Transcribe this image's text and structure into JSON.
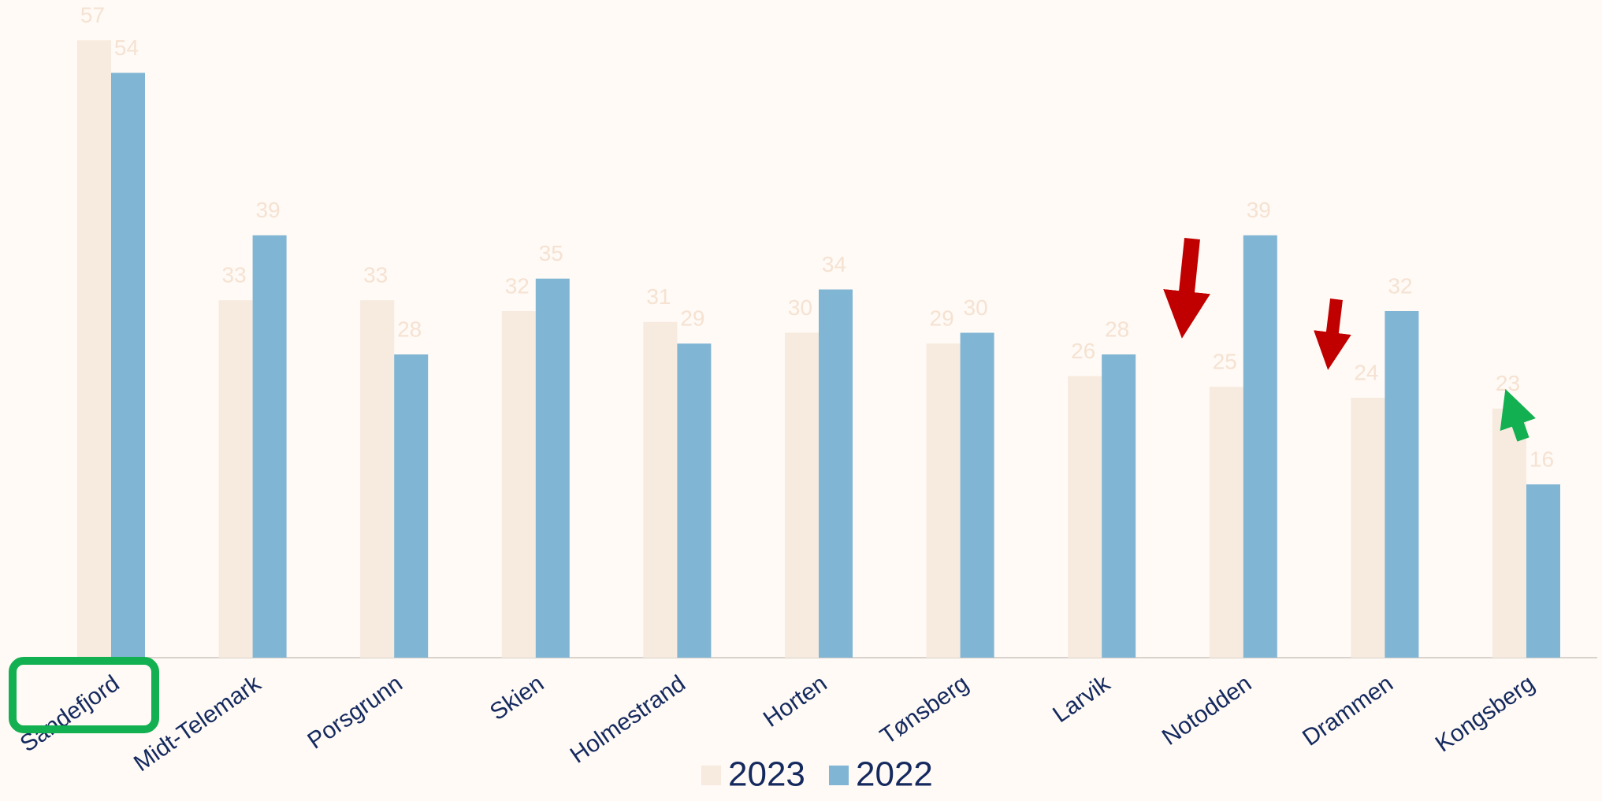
{
  "chart_data": {
    "type": "bar",
    "categories": [
      "Sandefjord",
      "Midt-Telemark",
      "Porsgrunn",
      "Skien",
      "Holmestrand",
      "Horten",
      "Tønsberg",
      "Larvik",
      "Notodden",
      "Drammen",
      "Kongsberg"
    ],
    "series": [
      {
        "name": "2023",
        "color": "#f7eadf",
        "values": [
          57,
          33,
          33,
          32,
          31,
          30,
          29,
          26,
          25,
          24,
          23
        ]
      },
      {
        "name": "2022",
        "color": "#80b5d4",
        "values": [
          54,
          39,
          28,
          35,
          29,
          34,
          30,
          28,
          39,
          32,
          16
        ]
      }
    ],
    "ylim": [
      0,
      60
    ],
    "legend": "bottom"
  }
}
